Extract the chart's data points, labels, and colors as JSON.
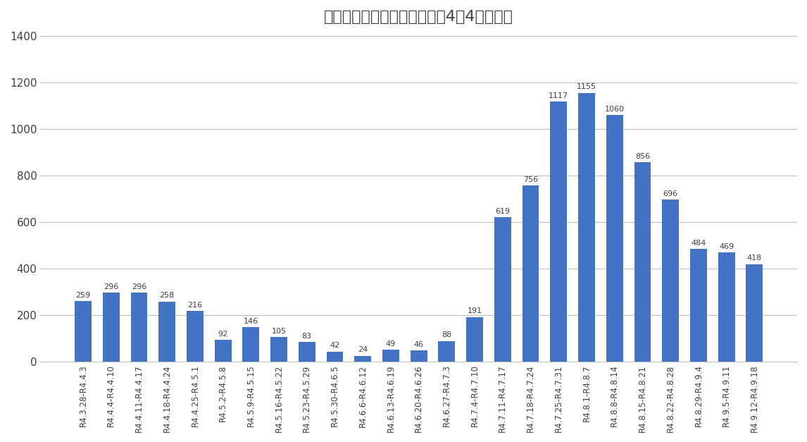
{
  "title": "一週間ごとの感染者数（令和4年4月から）",
  "categories": [
    "R4.3.28-R4.4.3",
    "R4.4.4-R4.4.10",
    "R4.4.11-R4.4.17",
    "R4.4.18-R4.4.24",
    "R4.4.25-R4.5.1",
    "R4.5.2-R4.5.8",
    "R4.5.9-R4.5.15",
    "R4.5.16-R4.5.22",
    "R4.5.23-R4.5.29",
    "R4.5.30-R4.6.5",
    "R4.6.6-R4.6.12",
    "R4.6.13-R4.6.19",
    "R4.6.20-R4.6.26",
    "R4.6.27-R4.7.3",
    "R4.7.4-R4.7.10",
    "R4.7.11-R4.7.17",
    "R4.7.18-R4.7.24",
    "R4.7.25-R4.7.31",
    "R4.8.1-R4.8.7",
    "R4.8.8-R4.8.14",
    "R4.8.15-R4.8.21",
    "R4.8.22-R4.8.28",
    "R4.8.29-R4.9.4",
    "R4.9.5-R4.9.11",
    "R4.9.12-R4.9.18"
  ],
  "values": [
    259,
    296,
    296,
    258,
    216,
    92,
    146,
    105,
    83,
    42,
    24,
    49,
    46,
    88,
    191,
    619,
    756,
    1117,
    1155,
    1060,
    856,
    696,
    484,
    469,
    418
  ],
  "bar_color": "#4472c4",
  "ylim": [
    0,
    1400
  ],
  "yticks": [
    0,
    200,
    400,
    600,
    800,
    1000,
    1200,
    1400
  ],
  "title_fontsize": 16,
  "label_fontsize": 8.5,
  "value_fontsize": 8,
  "background_color": "#ffffff",
  "grid_color": "#c0c0c0"
}
